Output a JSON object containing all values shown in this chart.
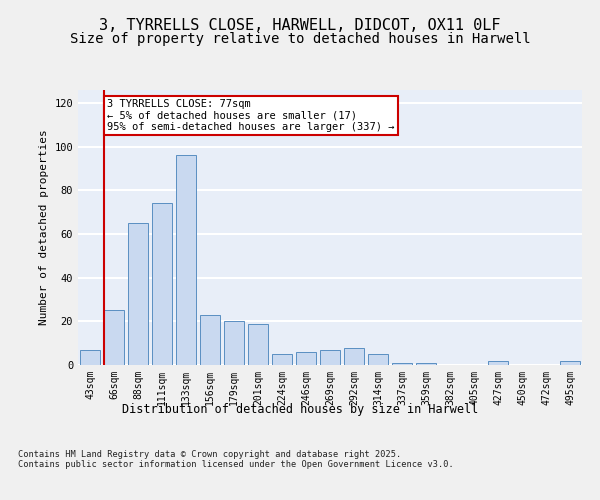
{
  "title": "3, TYRRELLS CLOSE, HARWELL, DIDCOT, OX11 0LF",
  "subtitle": "Size of property relative to detached houses in Harwell",
  "xlabel": "Distribution of detached houses by size in Harwell",
  "ylabel": "Number of detached properties",
  "categories": [
    "43sqm",
    "66sqm",
    "88sqm",
    "111sqm",
    "133sqm",
    "156sqm",
    "179sqm",
    "201sqm",
    "224sqm",
    "246sqm",
    "269sqm",
    "292sqm",
    "314sqm",
    "337sqm",
    "359sqm",
    "382sqm",
    "405sqm",
    "427sqm",
    "450sqm",
    "472sqm",
    "495sqm"
  ],
  "values": [
    7,
    25,
    65,
    74,
    96,
    23,
    20,
    19,
    5,
    6,
    7,
    8,
    5,
    1,
    1,
    0,
    0,
    2,
    0,
    0,
    2
  ],
  "bar_color": "#c9d9f0",
  "bar_edge_color": "#5a8fc2",
  "vline_color": "#cc0000",
  "annotation_text": "3 TYRRELLS CLOSE: 77sqm\n← 5% of detached houses are smaller (17)\n95% of semi-detached houses are larger (337) →",
  "annotation_box_color": "#ffffff",
  "annotation_box_edge_color": "#cc0000",
  "ylim": [
    0,
    126
  ],
  "yticks": [
    0,
    20,
    40,
    60,
    80,
    100,
    120
  ],
  "background_color": "#e8eef8",
  "grid_color": "#ffffff",
  "footer_text": "Contains HM Land Registry data © Crown copyright and database right 2025.\nContains public sector information licensed under the Open Government Licence v3.0.",
  "title_fontsize": 11,
  "subtitle_fontsize": 10,
  "xlabel_fontsize": 8.5,
  "ylabel_fontsize": 8,
  "tick_fontsize": 7,
  "annotation_fontsize": 7.5,
  "fig_width": 6.0,
  "fig_height": 5.0
}
